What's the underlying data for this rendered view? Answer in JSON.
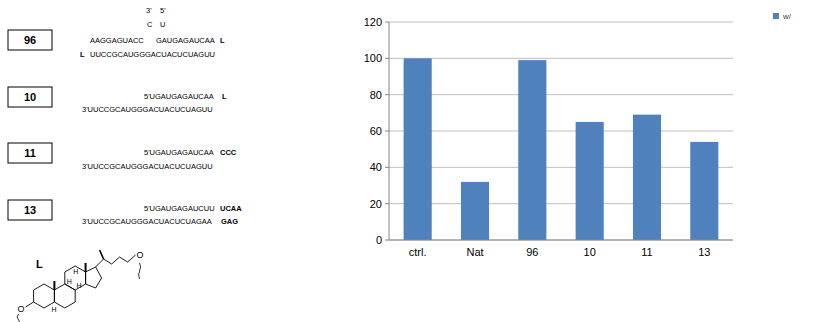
{
  "chart_data": {
    "type": "bar",
    "categories": [
      "ctrl.",
      "Nat",
      "96",
      "10",
      "11",
      "13"
    ],
    "series": [
      {
        "name": "w/",
        "color": "#4f81bd",
        "values": [
          100,
          32,
          99,
          65,
          69,
          54
        ]
      }
    ],
    "ylim": [
      0,
      120
    ],
    "yticks": [
      0,
      20,
      40,
      60,
      80,
      100,
      120
    ],
    "grid": true,
    "legend": "top-right"
  },
  "diagram": {
    "entries": [
      {
        "label": "96",
        "lines": [
          [
            {
              "text": "3'"
            },
            {
              "text": "5'"
            }
          ],
          [
            {
              "text": "C"
            },
            {
              "text": "U"
            }
          ],
          [
            {
              "text": "AAGGAGUACC"
            },
            {
              "text": "GAUGAGAUCAA"
            },
            {
              "text": "L",
              "bold": true
            }
          ],
          [
            {
              "text": "L",
              "bold": true
            },
            {
              "text": "UUCCGCAUGGGACUACUCUAGUU"
            }
          ]
        ]
      },
      {
        "label": "10",
        "lines": [
          [
            {
              "text": "5'UGAUGAGAUCAA"
            },
            {
              "text": "L",
              "bold": true
            }
          ],
          [
            {
              "text": "3'UUCCGCAUGGGACUACUCUAGUU"
            }
          ]
        ]
      },
      {
        "label": "11",
        "lines": [
          [
            {
              "text": "5'UGAUGAGAUCAA"
            },
            {
              "text": "CCC",
              "bold": true
            }
          ],
          [
            {
              "text": "3'UUCCGCAUGGGACUACUCUAGUU"
            }
          ]
        ]
      },
      {
        "label": "13",
        "lines": [
          [
            {
              "text": "5'UGAUGAGAUCUU"
            },
            {
              "text": "UCAA",
              "bold": true
            }
          ],
          [
            {
              "text": "3'UUCCGCAUGGGACUACUCUAGAA"
            },
            {
              "text": "GAG",
              "bold": true
            }
          ]
        ]
      }
    ],
    "linker": {
      "label": "L",
      "atoms": [
        "O",
        "O",
        "H",
        "H",
        "H",
        "H"
      ]
    }
  }
}
